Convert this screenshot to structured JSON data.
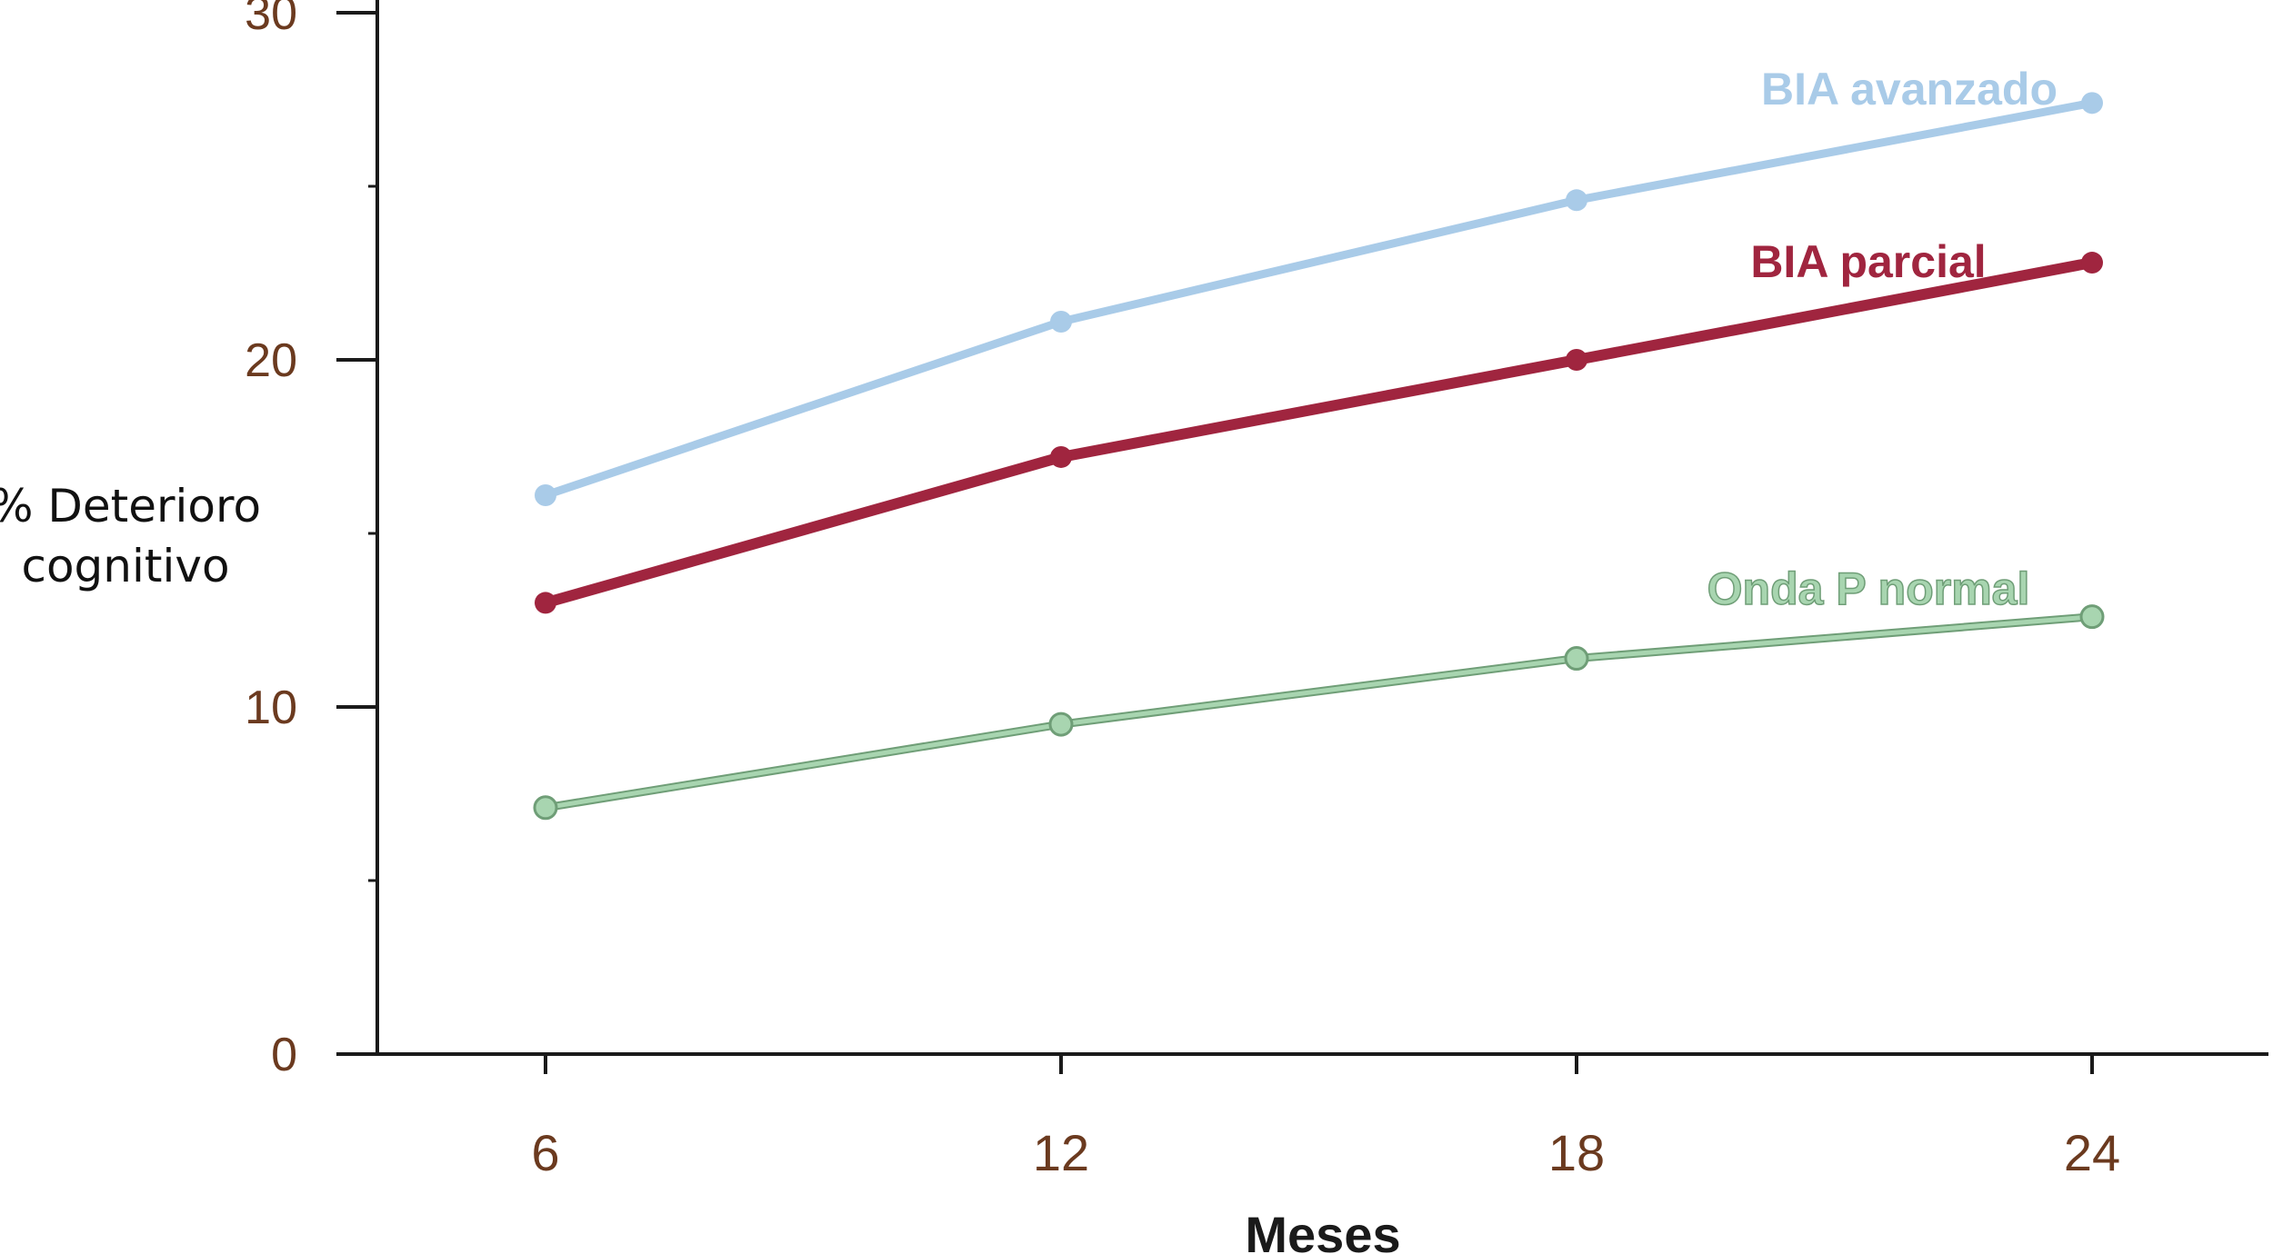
{
  "chart_data": {
    "type": "line",
    "xlabel": "Meses",
    "ylabel_lines": [
      "% Deterioro",
      "cognitivo"
    ],
    "x": [
      6,
      12,
      18,
      24
    ],
    "xticks": [
      "6",
      "12",
      "18",
      "24"
    ],
    "yticks": [
      "0",
      "10",
      "20",
      "30"
    ],
    "ylim": [
      0,
      30
    ],
    "grid": false,
    "series": [
      {
        "name": "BIA avanzado",
        "values": [
          16.1,
          21.1,
          24.6,
          27.4
        ],
        "color": "#a9cbe8"
      },
      {
        "name": "BIA parcial",
        "values": [
          13.0,
          17.2,
          20.0,
          22.8
        ],
        "color": "#a0253f"
      },
      {
        "name": "Onda P normal",
        "values": [
          7.1,
          9.5,
          11.4,
          12.6
        ],
        "color": "#a8d5b0"
      }
    ]
  }
}
